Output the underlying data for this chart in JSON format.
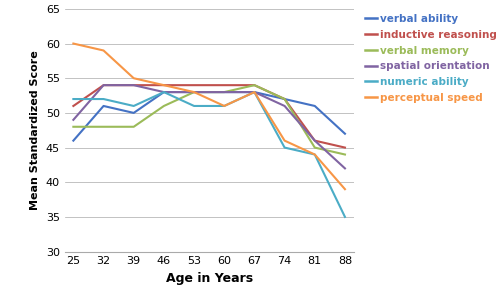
{
  "x": [
    25,
    32,
    39,
    46,
    53,
    60,
    67,
    74,
    81,
    88
  ],
  "series": {
    "verbal ability": {
      "values": [
        46,
        51,
        50,
        53,
        53,
        53,
        53,
        52,
        51,
        47
      ],
      "color": "#4472C4"
    },
    "inductive reasoning": {
      "values": [
        51,
        54,
        54,
        54,
        54,
        54,
        54,
        52,
        46,
        45
      ],
      "color": "#C0504D"
    },
    "verbal memory": {
      "values": [
        48,
        48,
        48,
        51,
        53,
        53,
        54,
        52,
        45,
        44
      ],
      "color": "#9BBB59"
    },
    "spatial orientation": {
      "values": [
        49,
        54,
        54,
        53,
        53,
        53,
        53,
        51,
        46,
        42
      ],
      "color": "#8064A2"
    },
    "numeric ability": {
      "values": [
        52,
        52,
        51,
        53,
        51,
        51,
        53,
        45,
        44,
        35
      ],
      "color": "#4BACC6"
    },
    "perceptual speed": {
      "values": [
        60,
        59,
        55,
        54,
        53,
        51,
        53,
        46,
        44,
        39
      ],
      "color": "#F79646"
    }
  },
  "xlabel": "Age in Years",
  "ylabel": "Mean Standardized Score",
  "ylim": [
    30,
    65
  ],
  "yticks": [
    30,
    35,
    40,
    45,
    50,
    55,
    60,
    65
  ],
  "xticks": [
    25,
    32,
    39,
    46,
    53,
    60,
    67,
    74,
    81,
    88
  ],
  "background_color": "#ffffff",
  "legend_order": [
    "verbal ability",
    "inductive reasoning",
    "verbal memory",
    "spatial orientation",
    "numeric ability",
    "perceptual speed"
  ]
}
